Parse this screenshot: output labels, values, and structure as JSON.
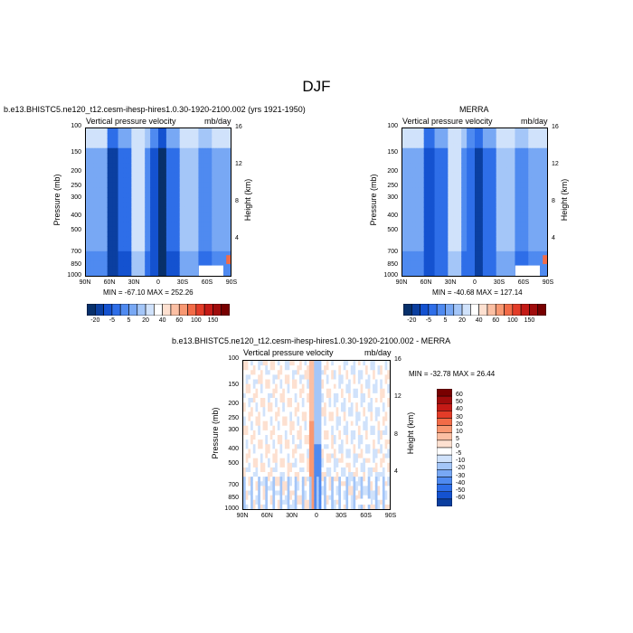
{
  "figure_title": "DJF",
  "panels": [
    {
      "title": "b.e13.BHISTC5.ne120_t12.cesm-ihesp-hires1.0.30-1920-2100.002 (yrs 1921-1950)",
      "left_label": "Vertical pressure velocity",
      "right_label": "mb/day",
      "ylabel": "Pressure (mb)",
      "y2label": "Height (km)",
      "stats": "MIN = -67.10   MAX = 252.26"
    },
    {
      "title": "MERRA",
      "left_label": "Vertical pressure velocity",
      "right_label": "mb/day",
      "ylabel": "Pressure (mb)",
      "y2label": "Height (km)",
      "stats": "MIN = -40.68   MAX = 127.14"
    },
    {
      "title": "b.e13.BHISTC5.ne120_t12.cesm-ihesp-hires1.0.30-1920-2100.002 - MERRA",
      "left_label": "Vertical pressure velocity",
      "right_label": "mb/day",
      "ylabel": "Pressure (mb)",
      "y2label": "Height (km)",
      "stats": "MIN = -32.78   MAX =  26.44"
    }
  ],
  "axes": {
    "x_ticks": [
      "90N",
      "60N",
      "30N",
      "0",
      "30S",
      "60S",
      "90S"
    ],
    "p_ticks": [
      "100",
      "150",
      "200",
      "250",
      "300",
      "400",
      "500",
      "700",
      "850",
      "1000"
    ],
    "p_values": [
      100,
      150,
      200,
      250,
      300,
      400,
      500,
      700,
      850,
      1000
    ],
    "h_ticks": [
      "16",
      "12",
      "8",
      "4"
    ],
    "h_values": [
      16,
      12,
      8,
      4
    ]
  },
  "colorbar_main": {
    "labels": [
      "-20",
      "-5",
      "5",
      "20",
      "40",
      "60",
      "100",
      "150"
    ],
    "colors": [
      "#08306b",
      "#0b3fa0",
      "#1452d0",
      "#2e6ee8",
      "#4f8af0",
      "#78a8f4",
      "#a4c6f8",
      "#d0e2fb",
      "#ffffff",
      "#fde0d0",
      "#fbbfa3",
      "#f89872",
      "#f26b47",
      "#e33c28",
      "#c41a16",
      "#a00c0c",
      "#780000"
    ]
  },
  "colorbar_diff": {
    "labels": [
      "60",
      "50",
      "40",
      "30",
      "20",
      "10",
      "5",
      "0",
      "-5",
      "-10",
      "-20",
      "-30",
      "-40",
      "-50",
      "-60"
    ],
    "colors": [
      "#780000",
      "#a00c0c",
      "#c41a16",
      "#e33c28",
      "#f26b47",
      "#f89872",
      "#fbbfa3",
      "#fde0d0",
      "#ffffff",
      "#d0e2fb",
      "#a4c6f8",
      "#78a8f4",
      "#4f8af0",
      "#2e6ee8",
      "#1452d0",
      "#0b3fa0"
    ]
  },
  "chart_data": [
    {
      "type": "heatmap",
      "title": "b.e13.BHISTC5.ne120_t12.cesm-ihesp-hires1.0.30-1920-2100.002 (yrs 1921-1950)",
      "xlabel": "",
      "ylabel": "Pressure (mb)",
      "y2label": "Height (km)",
      "x_ticks": [
        "90N",
        "60N",
        "30N",
        "0",
        "30S",
        "60S",
        "90S"
      ],
      "xlim": [
        90,
        -90
      ],
      "ylim_mb": [
        1000,
        100
      ],
      "ylog": true,
      "min": -67.1,
      "max": 252.26
    },
    {
      "type": "heatmap",
      "title": "MERRA",
      "ylabel": "Pressure (mb)",
      "y2label": "Height (km)",
      "x_ticks": [
        "90N",
        "60N",
        "30N",
        "0",
        "30S",
        "60S",
        "90S"
      ],
      "xlim": [
        90,
        -90
      ],
      "ylim_mb": [
        1000,
        100
      ],
      "ylog": true,
      "min": -40.68,
      "max": 127.14
    },
    {
      "type": "heatmap",
      "title": "b.e13.BHISTC5.ne120_t12.cesm-ihesp-hires1.0.30-1920-2100.002 - MERRA",
      "ylabel": "Pressure (mb)",
      "y2label": "Height (km)",
      "x_ticks": [
        "90N",
        "60N",
        "30N",
        "0",
        "30S",
        "60S",
        "90S"
      ],
      "xlim": [
        90,
        -90
      ],
      "ylim_mb": [
        1000,
        100
      ],
      "ylog": true,
      "min": -32.78,
      "max": 26.44
    }
  ]
}
